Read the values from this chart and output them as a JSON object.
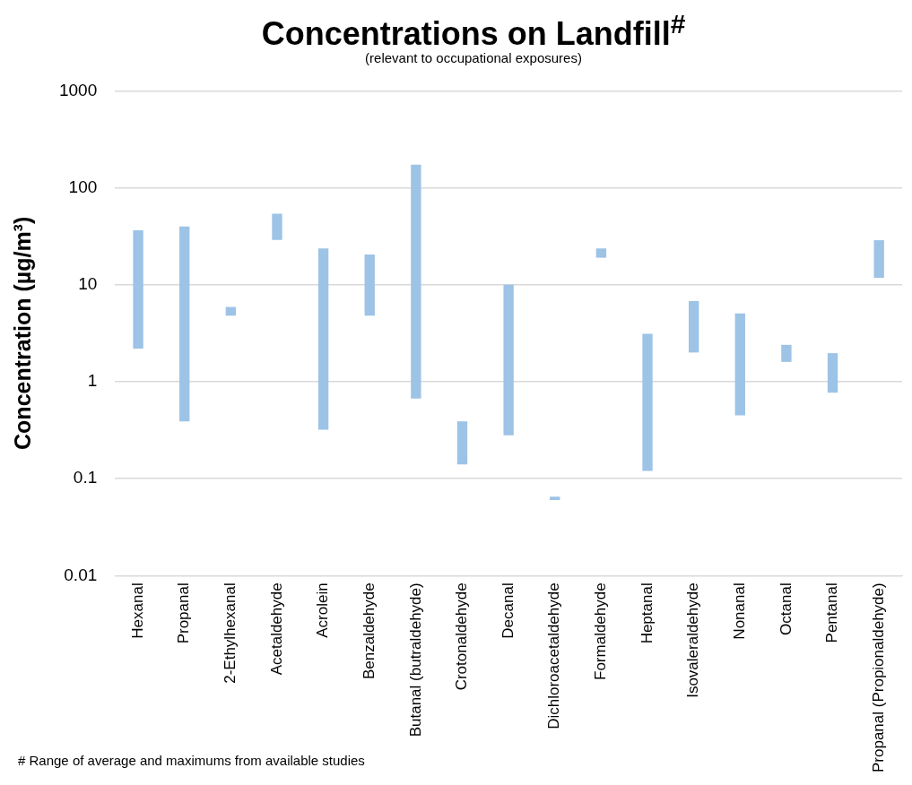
{
  "chart_data": {
    "type": "bar",
    "title": "Concentrations on Landfill$^{#}$",
    "subtitle": "(relevant to occupational exposures)",
    "ylabel": "Concentration (µg/m³)",
    "annotations": [
      "# Range of average and maximums from available studies"
    ],
    "categories": [
      "Hexanal",
      "Propanal",
      "2-Ethylhexanal",
      "Acetaldehyde",
      "Acrolein",
      "Benzaldehyde",
      "Butanal (butraldehyde)",
      "Crotonaldehyde",
      "Decanal",
      "Dichloroacetaldehyde",
      "Formaldehyde",
      "Heptanal",
      "Isovaleraldehyde",
      "Nonanal",
      "Octanal",
      "Pentanal",
      "Propanal (Propionaldehyde)"
    ],
    "series": [
      {
        "color": "#9dc3e6",
        "values": [
          34.3,
          39.6,
          1.1,
          25,
          23.4,
          15.7,
          173,
          0.25,
          9.7,
          0.005,
          4.7,
          3.0,
          4.8,
          4.6,
          0.8,
          1.2,
          17
        ],
        "base": [
          2.2,
          0.39,
          4.8,
          29,
          0.32,
          4.8,
          0.67,
          0.14,
          0.28,
          0.06,
          19,
          0.12,
          2.0,
          0.45,
          1.6,
          0.77,
          11.8
        ]
      }
    ],
    "log": "y",
    "ylim": [
      0.01,
      1000
    ],
    "yticks": [
      0.01,
      0.1,
      1,
      10,
      100,
      1000
    ],
    "grid": "y",
    "legend": false
  }
}
